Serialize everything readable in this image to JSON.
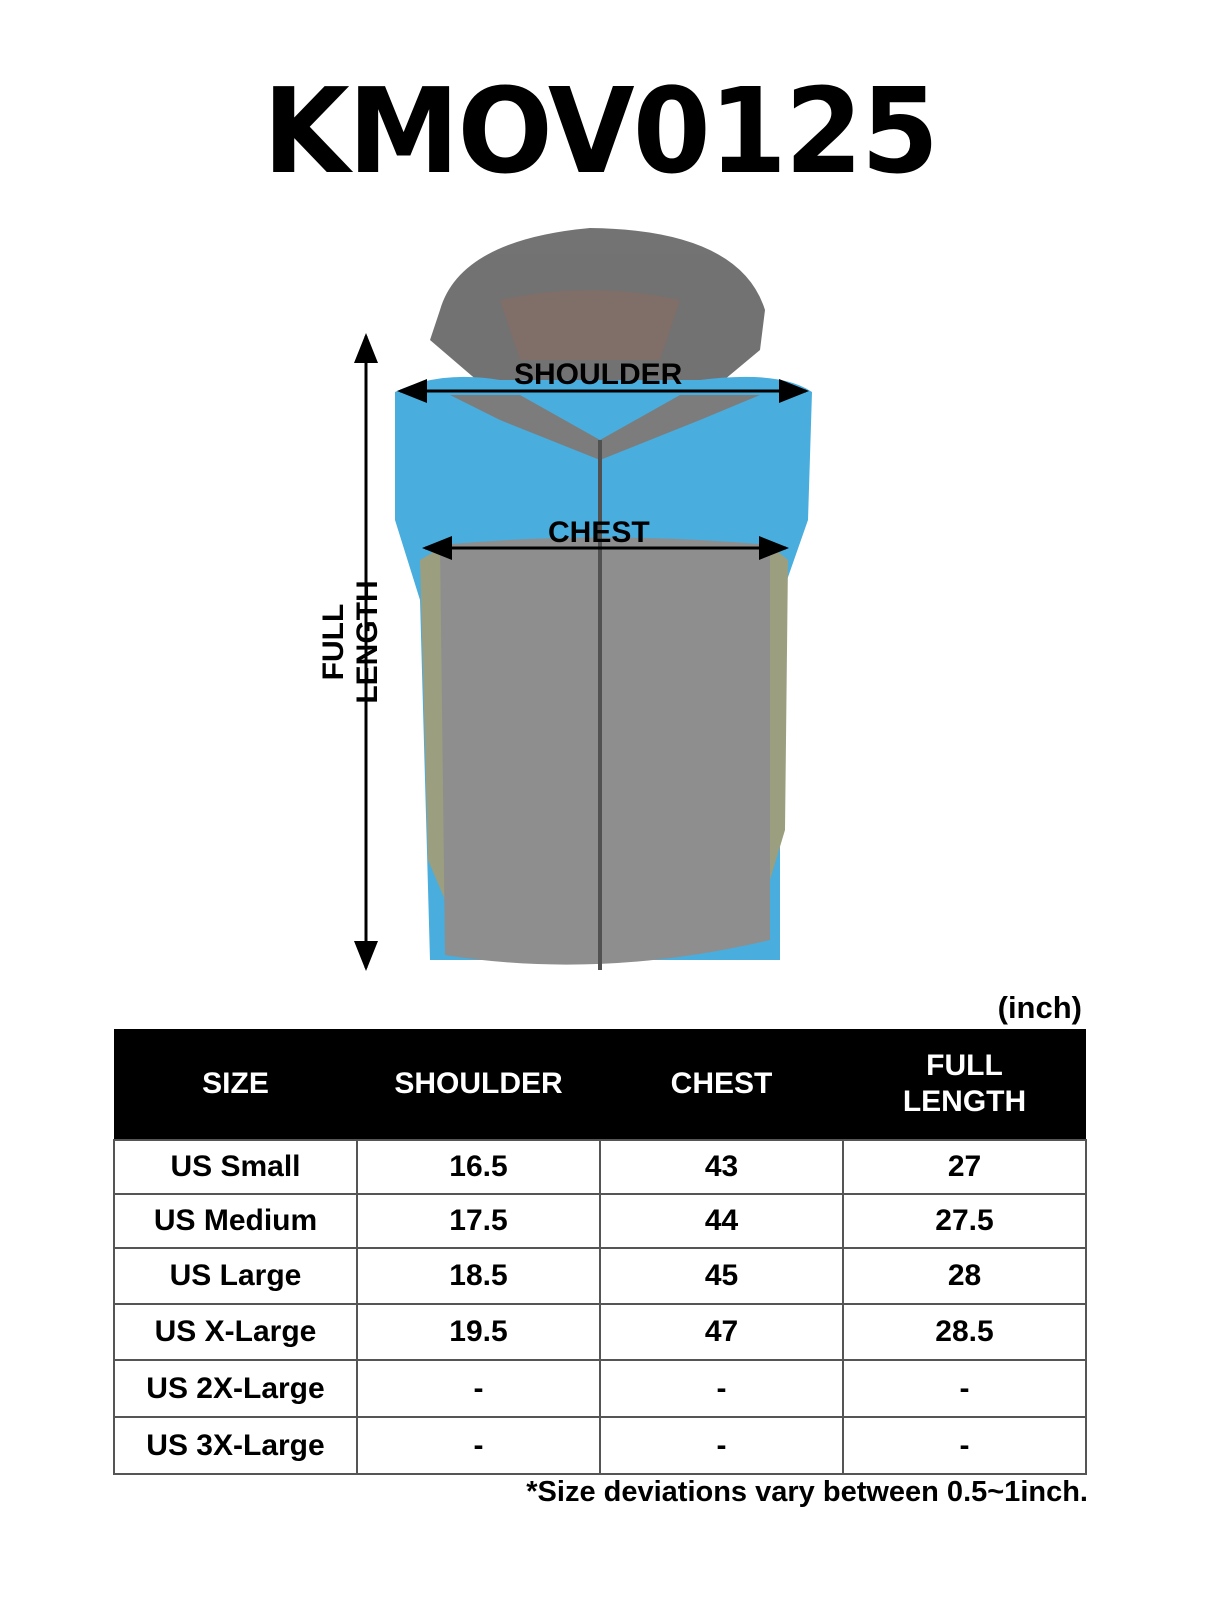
{
  "title": "KMOV0125",
  "diagram": {
    "shoulder_label": "SHOULDER",
    "chest_label": "CHEST",
    "length_label": "FULL LENGTH",
    "colors": {
      "hood": "#5a5a5a",
      "upper": "#2a9fd8",
      "side": "#8a8f6a",
      "body": "#7b7b7b"
    }
  },
  "unit": "(inch)",
  "table": {
    "headers": [
      "SIZE",
      "SHOULDER",
      "CHEST",
      "FULL LENGTH"
    ],
    "rows": [
      [
        "US Small",
        "16.5",
        "43",
        "27"
      ],
      [
        "US Medium",
        "17.5",
        "44",
        "27.5"
      ],
      [
        "US Large",
        "18.5",
        "45",
        "28"
      ],
      [
        "US X-Large",
        "19.5",
        "47",
        "28.5"
      ],
      [
        "US 2X-Large",
        "-",
        "-",
        "-"
      ],
      [
        "US 3X-Large",
        "-",
        "-",
        "-"
      ]
    ]
  },
  "note": "*Size deviations vary between 0.5~1inch."
}
